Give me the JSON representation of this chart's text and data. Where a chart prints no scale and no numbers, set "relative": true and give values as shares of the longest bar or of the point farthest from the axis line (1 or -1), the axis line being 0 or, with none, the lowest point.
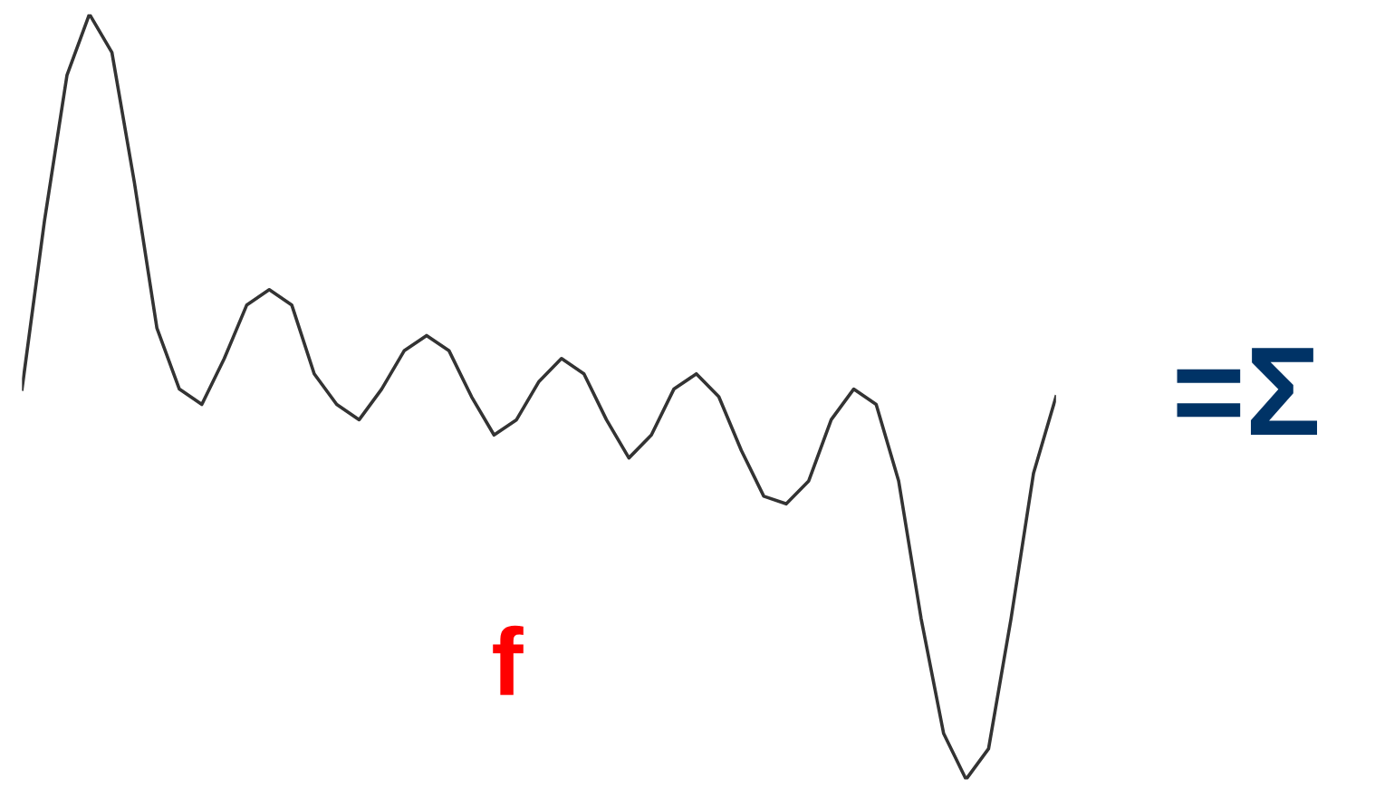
{
  "chart_data": {
    "type": "line",
    "relative": true,
    "categories": [
      null,
      null,
      null,
      null,
      null,
      null,
      null,
      null,
      null,
      null,
      null,
      null,
      null,
      null,
      null,
      null,
      null,
      null,
      null,
      null,
      null,
      null,
      null,
      null,
      null,
      null,
      null,
      null,
      null,
      null,
      null,
      null,
      null,
      null,
      null,
      null,
      null,
      null,
      null,
      null,
      null,
      null,
      null,
      null,
      null,
      null,
      null
    ],
    "series": [
      {
        "color": "#333333",
        "values": [
          0.51,
          0.73,
          0.92,
          1,
          0.95,
          0.78,
          0.59,
          0.51,
          0.49,
          0.55,
          0.62,
          0.64,
          0.62,
          0.53,
          0.49,
          0.47,
          0.51,
          0.56,
          0.58,
          0.56,
          0.5,
          0.45,
          0.47,
          0.52,
          0.55,
          0.53,
          0.47,
          0.42,
          0.45,
          0.51,
          0.53,
          0.5,
          0.43,
          0.37,
          0.36,
          0.39,
          0.47,
          0.51,
          0.49,
          0.39,
          0.21,
          0.06,
          0,
          0.04,
          0.21,
          0.4,
          0.5
        ]
      }
    ],
    "annotations": [
      "f",
      "=Σ"
    ],
    "marker": "none",
    "line_style": "solid"
  }
}
